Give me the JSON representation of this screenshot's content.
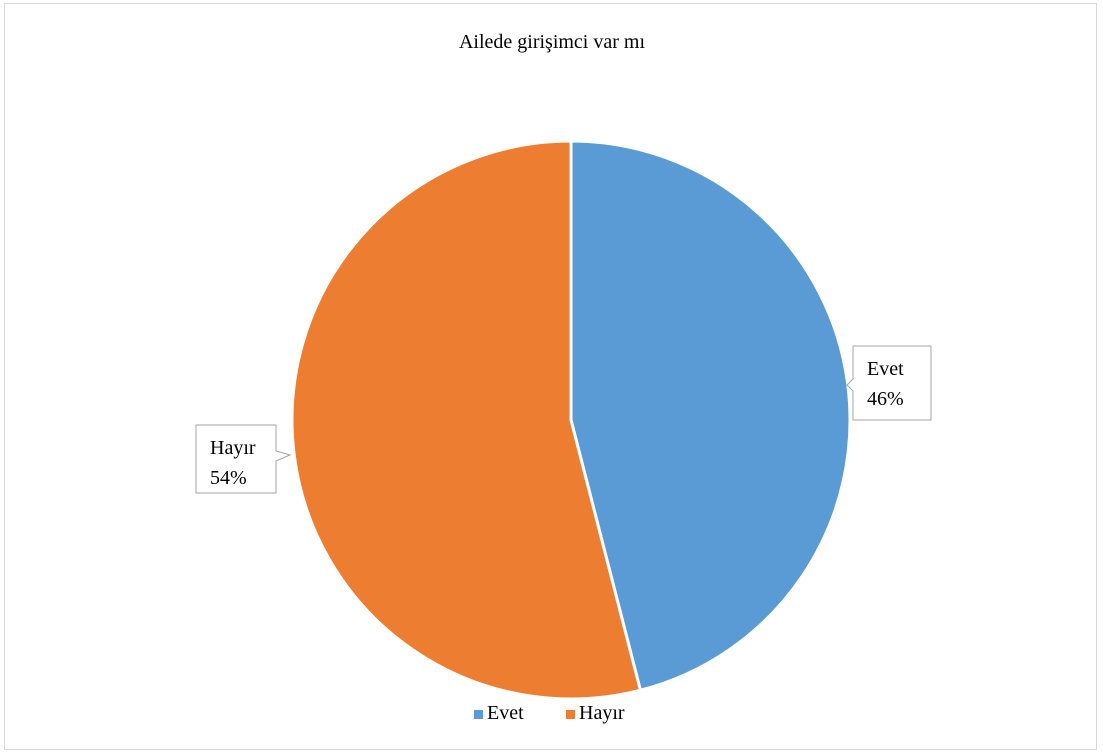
{
  "chart_data": {
    "type": "pie",
    "title": "Ailede girişimci var mı",
    "categories": [
      "Evet",
      "Hayır"
    ],
    "values": [
      46,
      54
    ],
    "data_labels": [
      {
        "category": "Evet",
        "percent": "46%"
      },
      {
        "category": "Hayır",
        "percent": "54%"
      }
    ],
    "colors": [
      "#5b9bd5",
      "#ed7d31"
    ],
    "legend": {
      "position": "bottom",
      "entries": [
        "Evet",
        "Hayır"
      ]
    }
  }
}
